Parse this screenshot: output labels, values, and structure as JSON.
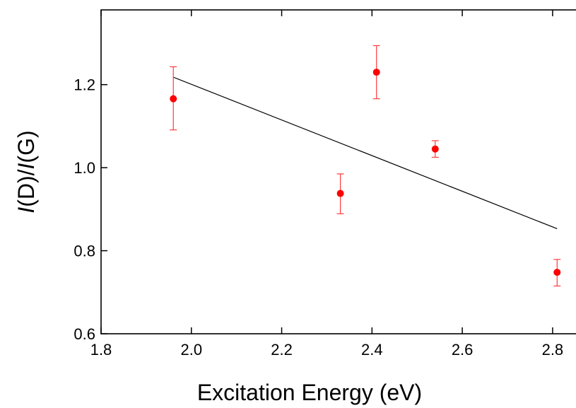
{
  "chart_data": {
    "type": "scatter",
    "title": "",
    "xlabel": "Excitation Energy (eV)",
    "ylabel_italic_1": "I",
    "ylabel_mid": "(D)/",
    "ylabel_italic_2": "I",
    "ylabel_end": "(G)",
    "xlim": [
      1.8,
      2.88
    ],
    "ylim": [
      0.6,
      1.38
    ],
    "x_ticks": [
      1.8,
      2.0,
      2.2,
      2.4,
      2.6,
      2.8
    ],
    "x_tick_labels": [
      "1.8",
      "2.0",
      "2.2",
      "2.4",
      "2.6",
      "2.8"
    ],
    "y_ticks": [
      0.6,
      0.8,
      1.0,
      1.2
    ],
    "y_tick_labels": [
      "0.6",
      "0.8",
      "1.0",
      "1.2"
    ],
    "grid": false,
    "points": [
      {
        "x": 1.96,
        "y": 1.166,
        "err_low": 1.091,
        "err_high": 1.243
      },
      {
        "x": 2.33,
        "y": 0.938,
        "err_low": 0.889,
        "err_high": 0.985
      },
      {
        "x": 2.41,
        "y": 1.23,
        "err_low": 1.166,
        "err_high": 1.294
      },
      {
        "x": 2.54,
        "y": 1.045,
        "err_low": 1.025,
        "err_high": 1.065
      },
      {
        "x": 2.81,
        "y": 0.748,
        "err_low": 0.715,
        "err_high": 0.779
      }
    ],
    "fit_line": {
      "x": [
        1.96,
        2.81
      ],
      "y": [
        1.218,
        0.853
      ]
    },
    "colors": {
      "points": "#ff0000",
      "errorbars": "#ff3b3b",
      "fit": "#000000",
      "axes": "#000000"
    }
  }
}
